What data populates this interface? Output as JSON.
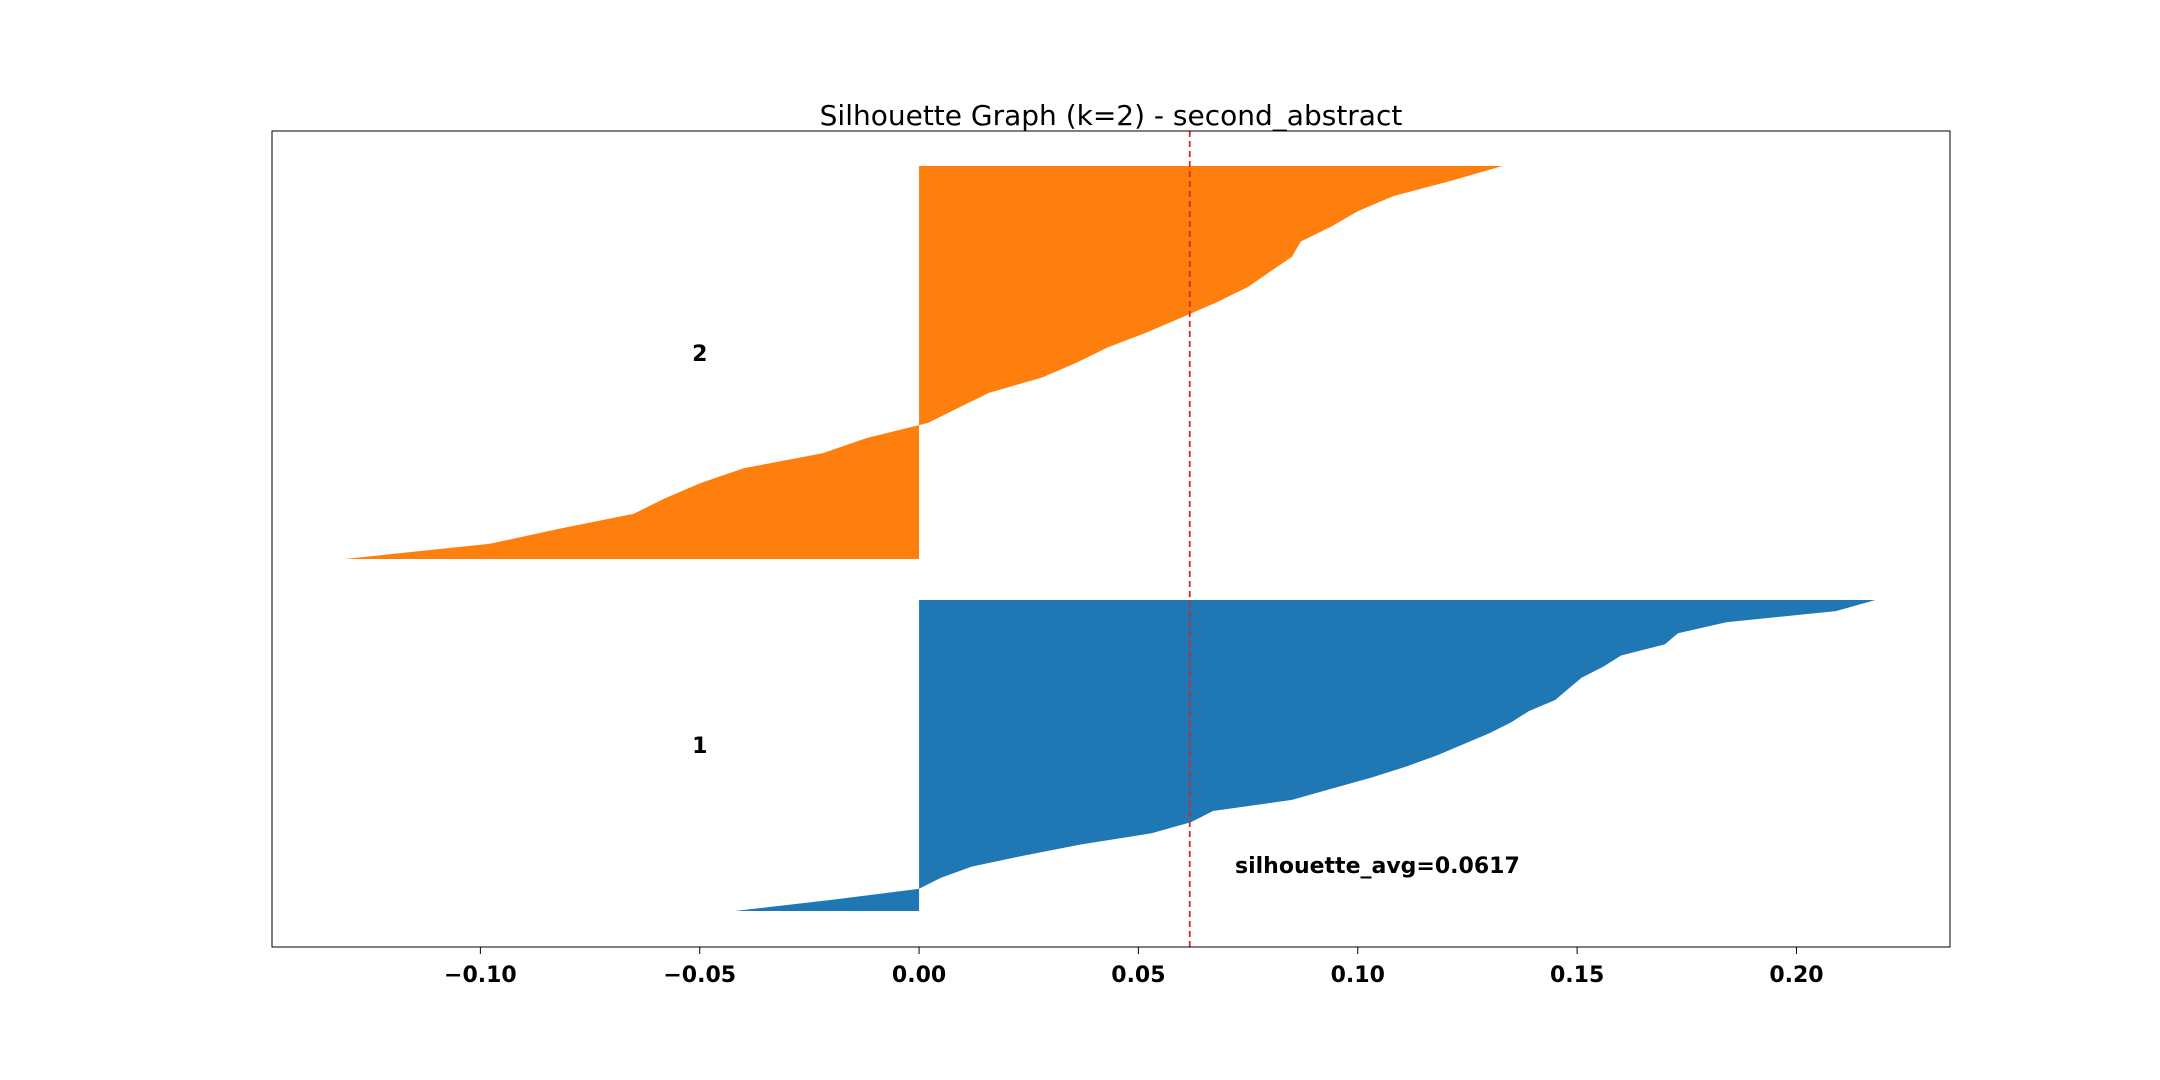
{
  "chart_data": {
    "type": "area",
    "title": "Silhouette Graph (k=2) - second_abstract",
    "xlabel": "",
    "ylabel": "",
    "xlim": [
      -0.1475,
      0.235
    ],
    "xticks": [
      -0.1,
      -0.05,
      0.0,
      0.05,
      0.1,
      0.15,
      0.2
    ],
    "xtick_labels": [
      "−0.10",
      "−0.05",
      "0.00",
      "0.05",
      "0.10",
      "0.15",
      "0.20"
    ],
    "grid": false,
    "average_line": {
      "value": 0.0617,
      "color": "#d62728",
      "style": "dashed"
    },
    "annotation": "silhouette_avg=0.0617",
    "series": [
      {
        "name": "1",
        "color": "#1f77b4",
        "n_points": 130,
        "silhouette_values_sorted": [
          0.218,
          0.209,
          0.184,
          0.173,
          0.17,
          0.16,
          0.156,
          0.151,
          0.148,
          0.145,
          0.139,
          0.135,
          0.13,
          0.124,
          0.118,
          0.111,
          0.103,
          0.094,
          0.085,
          0.067,
          0.062,
          0.053,
          0.037,
          0.024,
          0.012,
          0.005,
          0.0,
          -0.02,
          -0.042
        ]
      },
      {
        "name": "2",
        "color": "#ff7f0e",
        "n_points": 164,
        "silhouette_values_sorted": [
          0.133,
          0.121,
          0.108,
          0.1,
          0.094,
          0.087,
          0.085,
          0.08,
          0.075,
          0.068,
          0.06,
          0.052,
          0.043,
          0.036,
          0.028,
          0.016,
          0.009,
          0.002,
          -0.012,
          -0.022,
          -0.04,
          -0.05,
          -0.058,
          -0.065,
          -0.082,
          -0.098,
          -0.131
        ]
      }
    ],
    "cluster_labels": [
      "1",
      "2"
    ]
  }
}
